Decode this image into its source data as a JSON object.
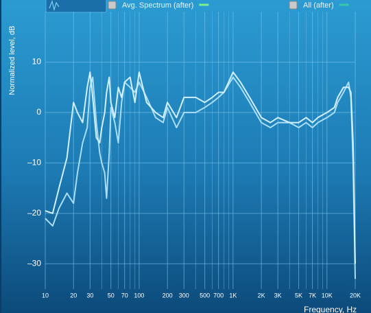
{
  "chart_data": {
    "type": "line",
    "x_label": "Frequency, Hz",
    "y_label": "Normalized level, dB",
    "xscale": "log",
    "xlim": [
      10,
      20000
    ],
    "ylim": [
      -35,
      20
    ],
    "xticks": [
      10,
      20,
      30,
      50,
      70,
      100,
      200,
      300,
      500,
      700,
      {
        "value": 1000,
        "label": "1K"
      },
      {
        "value": 2000,
        "label": "2K"
      },
      {
        "value": 3000,
        "label": "3K"
      },
      {
        "value": 5000,
        "label": "5K"
      },
      {
        "value": 7000,
        "label": "7K"
      },
      {
        "value": 10000,
        "label": "10K"
      },
      {
        "value": 20000,
        "label": "20K"
      }
    ],
    "x_minor_grid": [
      40,
      60,
      80,
      90,
      400,
      600,
      800,
      900,
      4000,
      6000,
      8000,
      9000
    ],
    "yticks": [
      10,
      0,
      {
        "value": -10,
        "label": "–10"
      },
      {
        "value": -20,
        "label": "–20"
      },
      {
        "value": -30,
        "label": "–30"
      }
    ],
    "grid": true,
    "x": [
      10,
      12,
      14,
      17,
      20,
      22,
      25,
      28,
      30,
      32,
      35,
      38,
      40,
      43,
      45,
      48,
      50,
      55,
      60,
      65,
      70,
      80,
      90,
      100,
      120,
      150,
      180,
      200,
      250,
      300,
      400,
      500,
      600,
      700,
      800,
      1000,
      1200,
      1500,
      2000,
      2500,
      3000,
      4000,
      5000,
      6000,
      7000,
      8000,
      10000,
      12000,
      13000,
      15000,
      17000,
      18000,
      19000,
      20000
    ],
    "series": [
      {
        "name": "Avg. Spectrum (after)",
        "color": "#a9def7",
        "legend_color": "#7ff08a",
        "values": [
          -21,
          -22.5,
          -19,
          -16,
          -18,
          -12,
          -6,
          -3,
          5,
          7,
          -2,
          -8,
          -10,
          -12,
          -17,
          -8,
          1,
          -2,
          -6,
          2,
          6,
          5,
          4,
          6,
          3,
          -1,
          -2,
          1,
          -3,
          0,
          0,
          1,
          2,
          3,
          4,
          7,
          5,
          2,
          -2,
          -3,
          -2,
          -2,
          -3,
          -2,
          -3,
          -2,
          -1,
          0,
          2,
          4,
          6,
          3,
          -10,
          -33
        ]
      },
      {
        "name": "All (after)",
        "color": "#d2f0ff",
        "legend_color": "#35c9a8",
        "values": [
          -19.5,
          -20,
          -15,
          -9,
          2,
          0,
          -2,
          5,
          8,
          3,
          -5,
          -6,
          -3,
          0,
          4,
          7,
          2,
          -1,
          5,
          3,
          6,
          7,
          2,
          8,
          2,
          0,
          -1,
          2,
          -1,
          3,
          3,
          2,
          3,
          4,
          4,
          8,
          6,
          3,
          -1,
          -2,
          -1,
          -2,
          -2,
          -1,
          -2,
          -1,
          0,
          1,
          3,
          5,
          5,
          4,
          -6,
          -30
        ]
      }
    ]
  }
}
